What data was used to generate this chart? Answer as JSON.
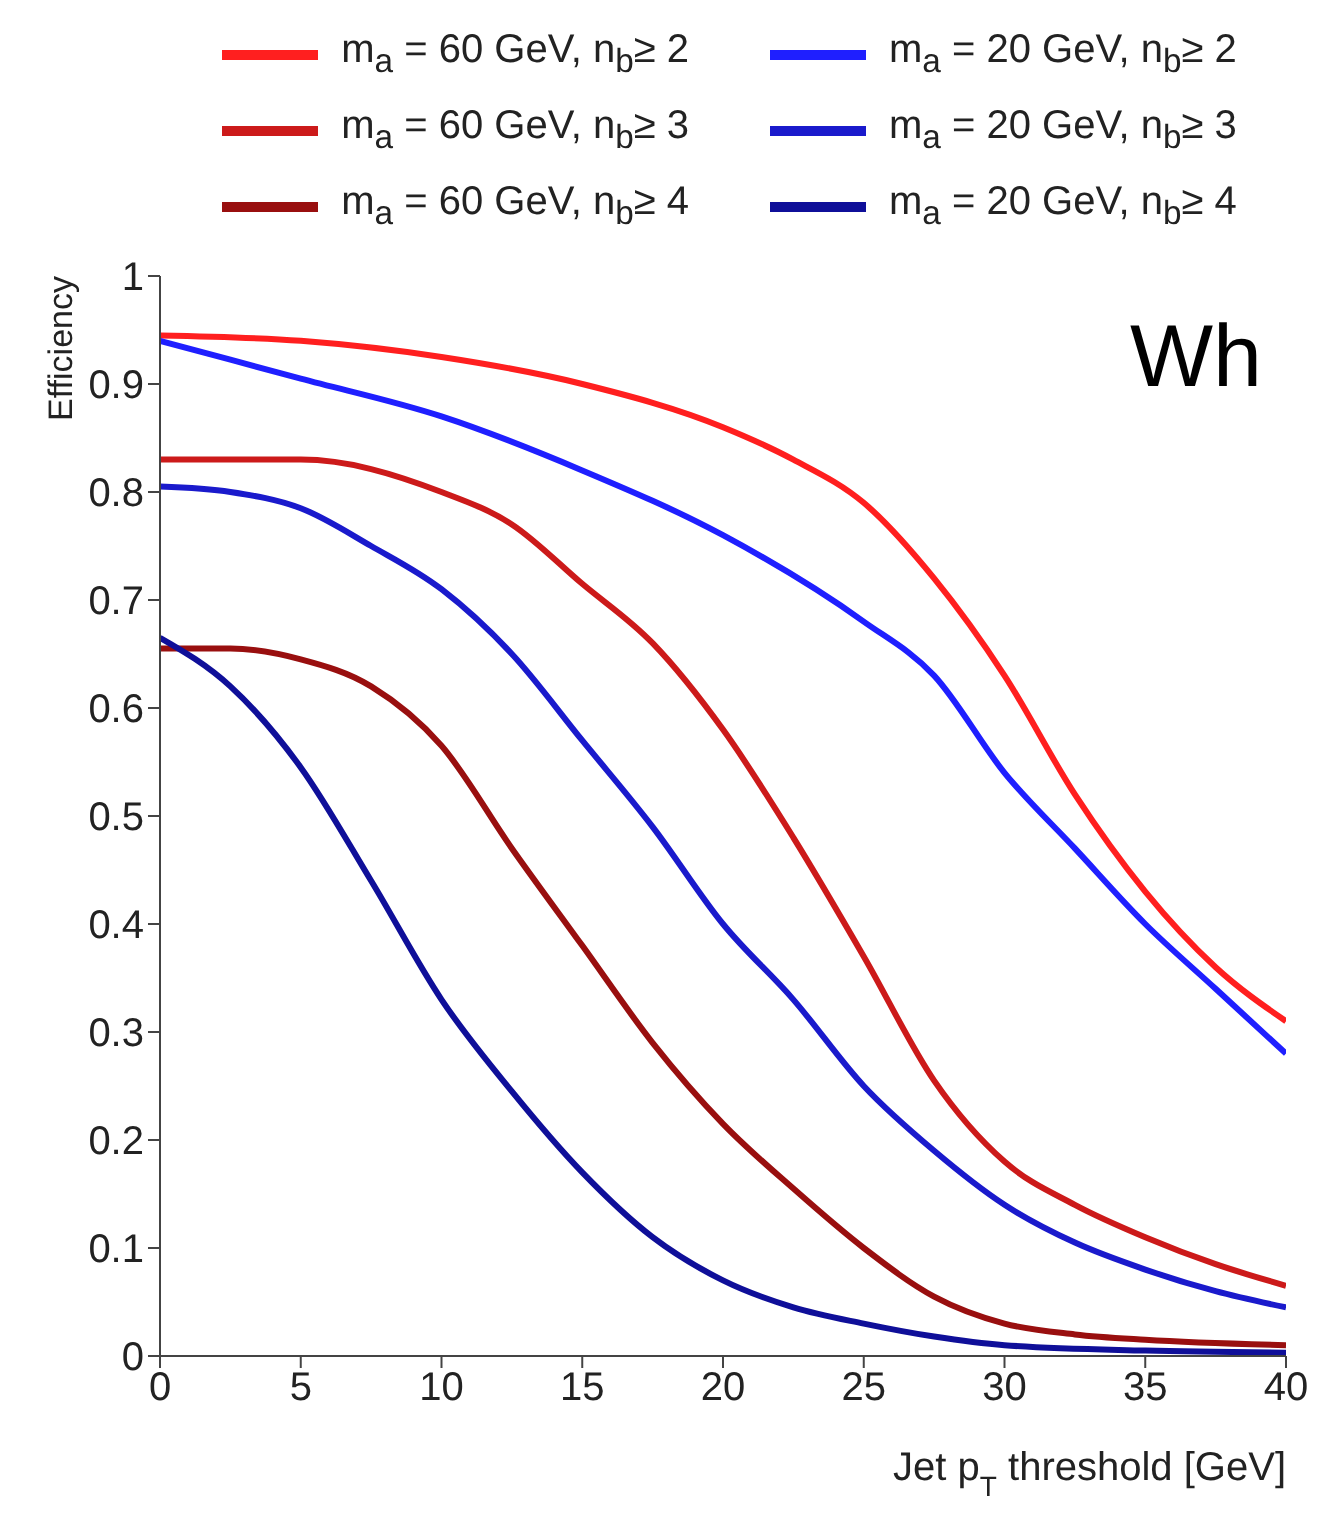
{
  "chart_data": {
    "type": "line",
    "xlabel": "Jet p$_{T}$ threshold [GeV]",
    "ylabel": "Efficiency",
    "annotations": [
      "Wh"
    ],
    "xlim": [
      0,
      40
    ],
    "xticks": [
      0,
      5,
      10,
      15,
      20,
      25,
      30,
      35,
      40
    ],
    "ylim": [
      0,
      1
    ],
    "yticks": [
      0,
      0.1,
      0.2,
      0.3,
      0.4,
      0.5,
      0.6,
      0.7,
      0.8,
      0.9,
      1
    ],
    "legend": "top",
    "marker": "none",
    "line_style": "solid",
    "grid": false,
    "series": [
      {
        "name": "m$_{a}$ = 60 GeV, n$_{b}$≥ 2",
        "color": "#ff1f1f",
        "x": [
          0,
          5,
          10,
          15,
          20,
          22.5,
          25,
          27.5,
          30,
          32.5,
          35,
          37.5,
          40
        ],
        "values": [
          0.945,
          0.94,
          0.925,
          0.9,
          0.86,
          0.83,
          0.79,
          0.72,
          0.63,
          0.52,
          0.43,
          0.36,
          0.31
        ]
      },
      {
        "name": "m$_{a}$ = 60 GeV, n$_{b}$≥ 3",
        "color": "#cc1a1a",
        "x": [
          0,
          5,
          10,
          12.5,
          15,
          17.5,
          20,
          22.5,
          25,
          27.5,
          30,
          32.5,
          35,
          37.5,
          40
        ],
        "values": [
          0.83,
          0.83,
          0.8,
          0.77,
          0.715,
          0.66,
          0.58,
          0.48,
          0.37,
          0.255,
          0.18,
          0.14,
          0.11,
          0.085,
          0.065
        ]
      },
      {
        "name": "m$_{a}$ = 60 GeV, n$_{b}$≥ 4",
        "color": "#990f0f",
        "x": [
          0,
          2.5,
          5,
          7.5,
          10,
          12.5,
          15,
          17.5,
          20,
          22.5,
          25,
          27.5,
          30,
          32.5,
          35,
          40
        ],
        "values": [
          0.655,
          0.655,
          0.645,
          0.62,
          0.565,
          0.47,
          0.38,
          0.29,
          0.215,
          0.155,
          0.1,
          0.055,
          0.03,
          0.02,
          0.015,
          0.01
        ]
      },
      {
        "name": "m$_{a}$ = 20 GeV, n$_{b}$≥ 2",
        "color": "#1f1fff",
        "x": [
          0,
          5,
          10,
          15,
          20,
          25,
          27.5,
          30,
          32.5,
          35,
          37.5,
          40
        ],
        "values": [
          0.94,
          0.905,
          0.87,
          0.82,
          0.76,
          0.68,
          0.63,
          0.54,
          0.47,
          0.4,
          0.34,
          0.28
        ]
      },
      {
        "name": "m$_{a}$ = 20 GeV, n$_{b}$≥ 3",
        "color": "#1a1acc",
        "x": [
          0,
          2.5,
          5,
          7.5,
          10,
          12.5,
          15,
          17.5,
          20,
          22.5,
          25,
          27.5,
          30,
          32.5,
          35,
          37.5,
          40
        ],
        "values": [
          0.805,
          0.8,
          0.785,
          0.75,
          0.71,
          0.65,
          0.57,
          0.49,
          0.4,
          0.33,
          0.25,
          0.19,
          0.14,
          0.105,
          0.08,
          0.06,
          0.045
        ]
      },
      {
        "name": "m$_{a}$ = 20 GeV, n$_{b}$≥ 4",
        "color": "#0f0f99",
        "x": [
          0,
          2.5,
          5,
          7.5,
          10,
          12.5,
          15,
          17.5,
          20,
          22.5,
          25,
          27.5,
          30,
          35,
          40
        ],
        "values": [
          0.665,
          0.62,
          0.545,
          0.44,
          0.33,
          0.245,
          0.17,
          0.11,
          0.07,
          0.045,
          0.03,
          0.018,
          0.01,
          0.005,
          0.003
        ]
      }
    ]
  }
}
